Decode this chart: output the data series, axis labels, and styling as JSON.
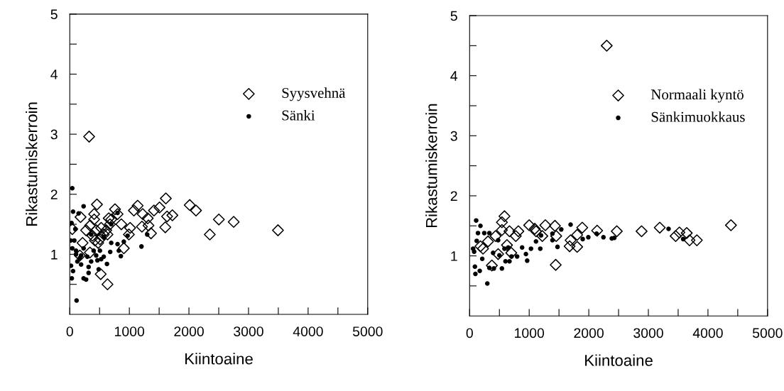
{
  "chart_data": [
    {
      "type": "scatter",
      "xlabel": "Kiintoaine",
      "ylabel": "Rikastumiskerroin",
      "xlim": [
        0,
        5000
      ],
      "ylim": [
        0,
        5
      ],
      "xticks": [
        0,
        {
          "value": 500,
          "label": null
        },
        1000,
        {
          "value": 1500,
          "label": null
        },
        2000,
        {
          "value": 2500,
          "label": null
        },
        3000,
        {
          "value": 3500,
          "label": null
        },
        4000,
        {
          "value": 4500,
          "label": null
        },
        5000
      ],
      "yticks": [
        {
          "value": 0.5,
          "label": null
        },
        1,
        {
          "value": 1.5,
          "label": null
        },
        2,
        {
          "value": 2.5,
          "label": null
        },
        3,
        {
          "value": 3.5,
          "label": null
        },
        4,
        {
          "value": 4.5,
          "label": null
        },
        5
      ],
      "legend": "top right",
      "grid": false,
      "series": [
        {
          "name": "Syysvehnä",
          "color": "#000000",
          "marker": "diamond",
          "x": [
            325,
            456,
            409,
            409,
            181,
            42,
            274,
            342,
            215,
            169,
            338,
            519,
            633,
            759,
            802,
            696,
            654,
            865,
            907,
            992,
            1013,
            1076,
            1139,
            1224,
            1211,
            1308,
            1321,
            1363,
            1413,
            1506,
            1612,
            1633,
            1603,
            1722,
            2013,
            2118,
            2502,
            2751,
            2350,
            3494,
            380,
            443,
            506,
            527,
            570,
            612,
            675,
            477,
            422,
            633
          ],
          "values": [
            2.96,
            1.83,
            1.67,
            1.58,
            1.62,
            1.42,
            1.4,
            1.48,
            1.19,
            0.98,
            1.03,
            0.67,
            0.5,
            1.75,
            1.67,
            1.58,
            1.6,
            1.5,
            1.1,
            1.33,
            1.44,
            1.73,
            1.81,
            1.67,
            1.46,
            1.6,
            1.48,
            1.35,
            1.73,
            1.78,
            1.93,
            1.63,
            1.45,
            1.65,
            1.82,
            1.73,
            1.58,
            1.54,
            1.33,
            1.4,
            1.31,
            1.4,
            1.25,
            1.44,
            1.33,
            1.4,
            1.5,
            1.19,
            1.23,
            1.33
          ]
        },
        {
          "name": "Sänki",
          "color": "#000000",
          "marker": "circle",
          "x": [
            42,
            55,
            232,
            148,
            30,
            93,
            13,
            76,
            42,
            105,
            232,
            21,
            55,
            34,
            127,
            190,
            232,
            274,
            316,
            316,
            359,
            401,
            443,
            464,
            506,
            527,
            570,
            485,
            624,
            679,
            696,
            802,
            823,
            857,
            907,
            970,
            1203,
            1300,
            802,
            114,
            359,
            570,
            696,
            105,
            169,
            295,
            190
          ],
          "values": [
            2.1,
            1.71,
            1.8,
            1.68,
            1.52,
            1.42,
            1.23,
            1.23,
            1.1,
            1.06,
            1.1,
            0.81,
            0.72,
            0.6,
            0.88,
            0.83,
            0.6,
            0.58,
            0.79,
            0.69,
            0.88,
            1.06,
            0.98,
            0.9,
            1.06,
            0.92,
            0.96,
            0.75,
            0.84,
            1.04,
            1.19,
            1.17,
            1.06,
            0.97,
            1.21,
            1.31,
            1.13,
            1.33,
            1.69,
            0.23,
            1.33,
            1.29,
            1.5,
            1.0,
            0.94,
            0.96,
            0.98
          ]
        }
      ]
    },
    {
      "type": "scatter",
      "xlabel": "Kiintoaine",
      "ylabel": "Rikastumiskerroin",
      "xlim": [
        0,
        5000
      ],
      "ylim": [
        0,
        5
      ],
      "xticks": [
        0,
        {
          "value": 500,
          "label": null
        },
        1000,
        {
          "value": 1500,
          "label": null
        },
        2000,
        {
          "value": 2500,
          "label": null
        },
        3000,
        {
          "value": 3500,
          "label": null
        },
        4000,
        {
          "value": 4500,
          "label": null
        },
        5000
      ],
      "yticks": [
        {
          "value": 0.5,
          "label": null
        },
        1,
        {
          "value": 1.5,
          "label": null
        },
        2,
        {
          "value": 2.5,
          "label": null
        },
        3,
        {
          "value": 3.5,
          "label": null
        },
        4,
        {
          "value": 4.5,
          "label": null
        },
        5
      ],
      "legend": "top right",
      "grid": false,
      "series": [
        {
          "name": "Normaali kyntö",
          "color": "#000000",
          "marker": "diamond",
          "x": [
            2301,
            585,
            542,
            542,
            436,
            309,
            182,
            225,
            373,
            479,
            669,
            818,
            775,
            627,
            699,
            1000,
            1093,
            1114,
            1220,
            1271,
            1432,
            1453,
            1445,
            1890,
            1805,
            1695,
            1678,
            1805,
            2140,
            2470,
            2886,
            3191,
            3458,
            3521,
            3644,
            3691,
            3814,
            4386
          ],
          "values": [
            4.5,
            1.66,
            1.56,
            1.43,
            1.33,
            1.24,
            1.16,
            1.12,
            0.84,
            1.03,
            1.41,
            1.41,
            1.33,
            1.18,
            1.05,
            1.51,
            1.45,
            1.41,
            1.33,
            1.51,
            1.5,
            1.33,
            0.85,
            1.47,
            1.35,
            1.26,
            1.16,
            1.15,
            1.42,
            1.41,
            1.41,
            1.47,
            1.33,
            1.39,
            1.38,
            1.26,
            1.26,
            1.51
          ]
        },
        {
          "name": "Sänkimuokkaus",
          "color": "#000000",
          "marker": "circle",
          "x": [
            110,
            182,
            140,
            119,
            59,
            76,
            89,
            97,
            170,
            297,
            246,
            331,
            212,
            331,
            407,
            394,
            479,
            542,
            602,
            669,
            703,
            648,
            797,
            881,
            945,
            966,
            1030,
            1114,
            1186,
            1199,
            1390,
            1390,
            1475,
            1538,
            1695,
            1898,
            1992,
            2131,
            2246,
            2386,
            2428,
            3339,
            3585,
            500,
            585
          ],
          "values": [
            1.59,
            1.5,
            1.38,
            1.25,
            1.12,
            1.07,
            0.82,
            0.7,
            0.75,
            0.54,
            1.38,
            1.38,
            0.95,
            0.8,
            0.79,
            1.05,
            1.26,
            0.79,
            0.91,
            0.91,
            0.99,
            1.14,
            0.99,
            1.14,
            1.03,
            0.92,
            1.12,
            1.24,
            1.12,
            1.34,
            1.37,
            1.26,
            1.15,
            1.44,
            1.52,
            1.28,
            1.31,
            1.37,
            1.31,
            1.29,
            1.3,
            1.45,
            1.28,
            1.01,
            1.12
          ]
        }
      ]
    }
  ]
}
